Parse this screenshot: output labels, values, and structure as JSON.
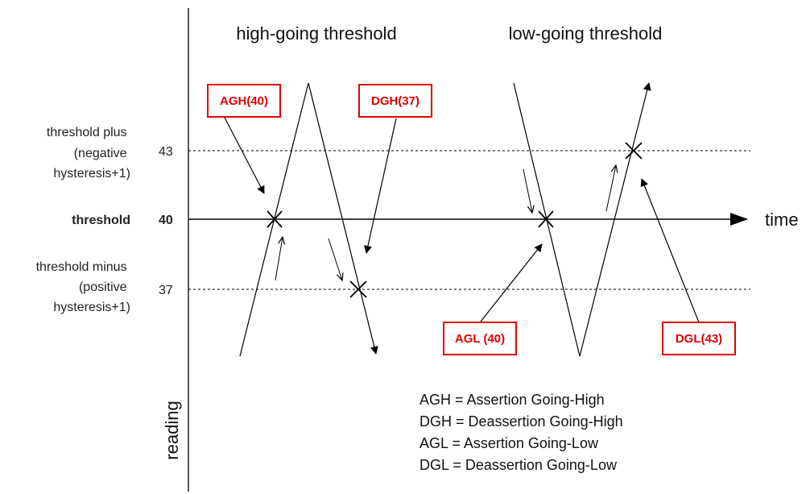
{
  "section_titles": {
    "high_going": "high-going threshold",
    "low_going": "low-going threshold"
  },
  "axis": {
    "x_label": "time",
    "y_label": "reading"
  },
  "levels": {
    "upper": {
      "value": "43",
      "label_lines": [
        "threshold plus",
        "(negative",
        "hysteresis+1)"
      ]
    },
    "threshold": {
      "value": "40",
      "label": "threshold"
    },
    "lower": {
      "value": "37",
      "label_lines": [
        "threshold minus",
        "(positive",
        "hysteresis+1)"
      ]
    }
  },
  "callouts": {
    "agh": "AGH(40)",
    "dgh": "DGH(37)",
    "agl": "AGL (40)",
    "dgl": "DGL(43)"
  },
  "legend": [
    "AGH = Assertion Going-High",
    "DGH = Deassertion Going-High",
    "AGL = Assertion Going-Low",
    "DGL = Deassertion Going-Low"
  ],
  "colors": {
    "callout": "#e00000",
    "line": "#000000"
  },
  "icons": [
    "arrow-head",
    "cross-marker"
  ]
}
